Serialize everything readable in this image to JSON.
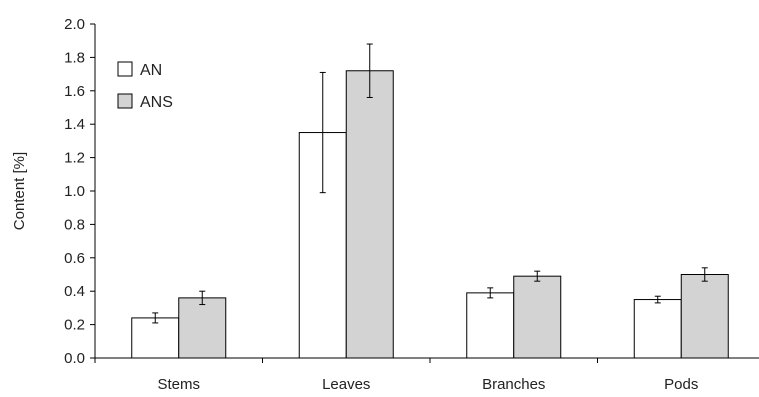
{
  "chart_data": {
    "type": "bar",
    "categories": [
      "Stems",
      "Leaves",
      "Branches",
      "Pods"
    ],
    "series": [
      {
        "name": "AN",
        "color": "#ffffff",
        "values": [
          0.24,
          1.35,
          0.39,
          0.35
        ],
        "errors": [
          0.03,
          0.36,
          0.03,
          0.02
        ]
      },
      {
        "name": "ANS",
        "color": "#d3d3d3",
        "values": [
          0.36,
          1.72,
          0.49,
          0.5
        ],
        "errors": [
          0.04,
          0.16,
          0.03,
          0.04
        ]
      }
    ],
    "xlabel": "",
    "ylabel": "Content [%]",
    "ylim": [
      0.0,
      2.0
    ],
    "yticks": [
      "0.0",
      "0.2",
      "0.4",
      "0.6",
      "0.8",
      "1.0",
      "1.2",
      "1.4",
      "1.6",
      "1.8",
      "2.0"
    ],
    "legend": "top-left",
    "grid": false
  }
}
